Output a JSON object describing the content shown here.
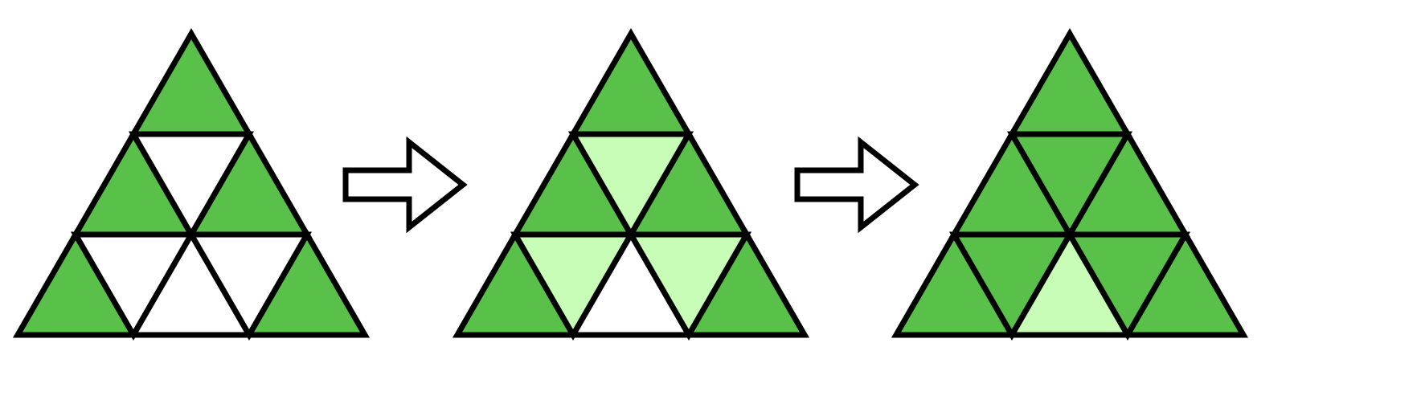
{
  "colors": {
    "background": "#ffffff",
    "outline": "#000000",
    "filled": "#59c04a",
    "light": "#c8fdb7",
    "empty": "#ffffff"
  },
  "panels": [
    {
      "name": "step-1",
      "cells": [
        "filled",
        "filled",
        "empty",
        "filled",
        "filled",
        "empty",
        "empty",
        "empty",
        "filled"
      ]
    },
    {
      "name": "step-2",
      "cells": [
        "filled",
        "filled",
        "light",
        "filled",
        "filled",
        "light",
        "empty",
        "light",
        "filled"
      ]
    },
    {
      "name": "step-3",
      "cells": [
        "filled",
        "filled",
        "filled",
        "filled",
        "filled",
        "filled",
        "light",
        "filled",
        "filled"
      ]
    }
  ],
  "arrows": [
    {
      "name": "arrow-1",
      "icon": "right-arrow-icon"
    },
    {
      "name": "arrow-2",
      "icon": "right-arrow-icon"
    }
  ]
}
